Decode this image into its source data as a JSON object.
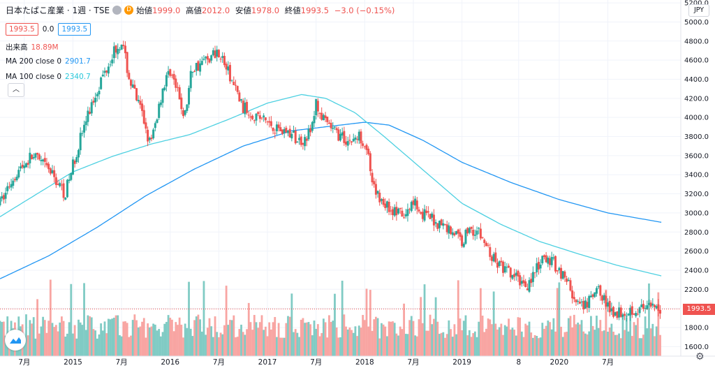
{
  "header": {
    "symbol": "日本たばこ産業 · 1週 · TSE",
    "badge_d": "D",
    "ohlc": [
      {
        "k": "始値",
        "v": "1999.0"
      },
      {
        "k": "高値",
        "v": "2012.0"
      },
      {
        "k": "安値",
        "v": "1978.0"
      },
      {
        "k": "終値",
        "v": "1993.5"
      }
    ],
    "change": "−3.0 (−0.15%)"
  },
  "quote": {
    "bid": "1993.5",
    "spread": "0.0",
    "ask": "1993.5"
  },
  "indicators": [
    {
      "label": "出来高",
      "value": "18.89M",
      "color": "#ef5350"
    },
    {
      "label": "MA 200 close 0",
      "value": "2901.7",
      "color": "#2196f3"
    },
    {
      "label": "MA 100 close 0",
      "value": "2340.7",
      "color": "#26c6da"
    }
  ],
  "currency": "JPY",
  "last_price_tag": "1993.5",
  "colors": {
    "up": "#26a69a",
    "down": "#ef5350",
    "ma200": "#2196f3",
    "ma100": "#4dd0e1",
    "vol_up": "#80cbc4",
    "vol_down": "#f8a5a2"
  },
  "chart_data": {
    "type": "candlestick",
    "interval": "1週",
    "y_ticks": [
      "5200.0",
      "5000.0",
      "4800.0",
      "4600.0",
      "4400.0",
      "4200.0",
      "4000.0",
      "3800.0",
      "3600.0",
      "3400.0",
      "3200.0",
      "3000.0",
      "2800.0",
      "2600.0",
      "2400.0",
      "2200.0",
      "2000.0",
      "1800.0",
      "1600.0"
    ],
    "ylim": [
      1500,
      5230
    ],
    "x_ticks": [
      "7月",
      "2015",
      "7月",
      "2016",
      "7月",
      "2017",
      "7月",
      "2018",
      "7月",
      "2019",
      "8",
      "2020",
      "7月"
    ],
    "x_tick_t": [
      0.5,
      1.0,
      1.5,
      2.0,
      2.5,
      3.0,
      3.5,
      4.0,
      4.5,
      5.0,
      5.583,
      6.0,
      6.5
    ],
    "t_range": [
      0.25,
      7.25
    ],
    "price_path_t": [
      0.25,
      0.4,
      0.58,
      0.75,
      0.82,
      0.92,
      1.08,
      1.25,
      1.42,
      1.5,
      1.58,
      1.72,
      1.8,
      1.92,
      2.0,
      2.15,
      2.22,
      2.5,
      2.75,
      2.92,
      3.08,
      3.2,
      3.33,
      3.45,
      3.5,
      3.58,
      3.75,
      3.83,
      3.96,
      4.02,
      4.08,
      4.25,
      4.42,
      4.5,
      4.58,
      4.75,
      4.92,
      5.0,
      5.08,
      5.17,
      5.33,
      5.5,
      5.67,
      5.83,
      5.92,
      6.08,
      6.17,
      6.25,
      6.33,
      6.42,
      6.5,
      6.58,
      6.75,
      6.92,
      7.05
    ],
    "price_path_v": [
      3100,
      3400,
      3600,
      3450,
      3350,
      3200,
      3800,
      4300,
      4700,
      4800,
      4400,
      4000,
      3700,
      4300,
      4500,
      4000,
      4500,
      4700,
      4100,
      4000,
      3900,
      3850,
      3750,
      3850,
      4150,
      3950,
      3800,
      3750,
      3800,
      3700,
      3250,
      3050,
      2950,
      3150,
      3000,
      2900,
      2800,
      2700,
      2850,
      2800,
      2500,
      2350,
      2250,
      2500,
      2500,
      2300,
      2050,
      2000,
      2100,
      2200,
      2000,
      1960,
      1990,
      1993.5,
      1993.5
    ],
    "ma100_t": [
      0.25,
      0.6,
      1.0,
      1.4,
      1.8,
      2.2,
      2.6,
      3.0,
      3.35,
      3.6,
      3.9,
      4.2,
      4.6,
      5.0,
      5.4,
      5.8,
      6.2,
      6.6,
      7.05
    ],
    "ma100_v": [
      2960,
      3180,
      3430,
      3590,
      3720,
      3820,
      3980,
      4150,
      4240,
      4200,
      4050,
      3800,
      3450,
      3100,
      2880,
      2700,
      2570,
      2450,
      2340.7
    ],
    "ma200_t": [
      0.25,
      0.75,
      1.25,
      1.75,
      2.25,
      2.75,
      3.25,
      3.75,
      4.0,
      4.25,
      4.6,
      5.0,
      5.5,
      6.0,
      6.5,
      7.05
    ],
    "ma200_v": [
      2310,
      2550,
      2850,
      3180,
      3460,
      3700,
      3860,
      3920,
      3950,
      3920,
      3760,
      3530,
      3320,
      3140,
      3000,
      2901.7
    ],
    "last_price": 1993.5
  }
}
